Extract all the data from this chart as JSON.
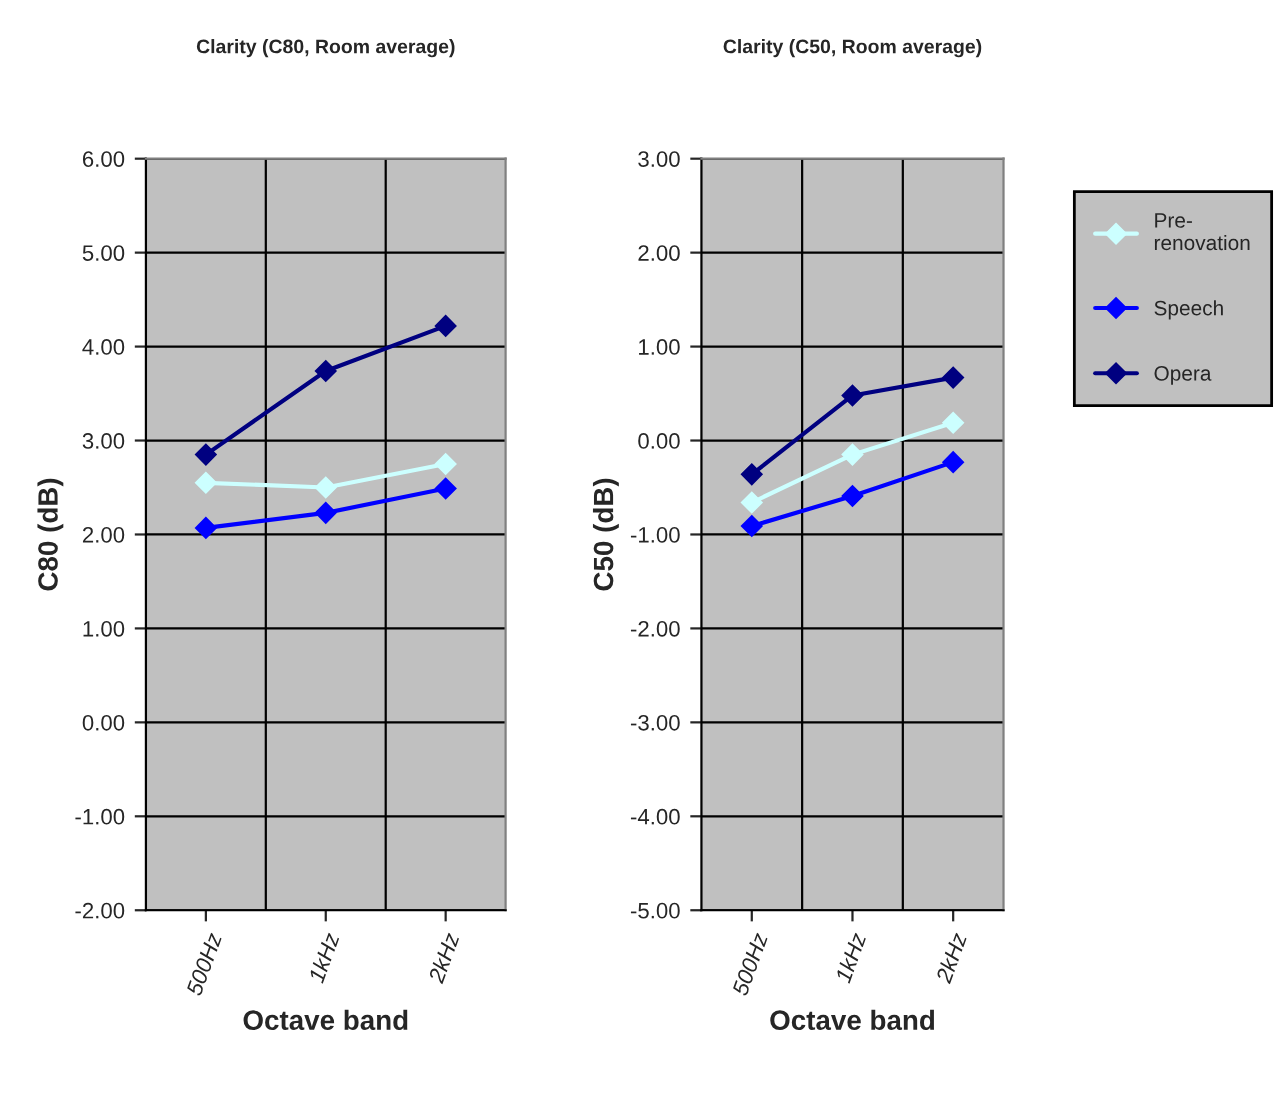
{
  "chart_data": [
    {
      "type": "line",
      "title": "Clarity (C80, Room average)",
      "xlabel": "Octave band",
      "ylabel": "C80 (dB)",
      "categories": [
        "500Hz",
        "1kHz",
        "2kHz"
      ],
      "series": [
        {
          "color": "#ccffff",
          "values": [
            2.55,
            2.5,
            2.75
          ]
        },
        {
          "color": "#0000ff",
          "values": [
            2.07,
            2.23,
            2.49
          ]
        },
        {
          "color": "#000080",
          "values": [
            2.85,
            3.74,
            4.22
          ]
        }
      ],
      "ylim": [
        -2,
        6
      ],
      "yticks": [
        {
          "value": -2,
          "label": "-2.00"
        },
        {
          "value": -1,
          "label": "-1.00"
        },
        {
          "value": 0,
          "label": "0.00"
        },
        {
          "value": 1,
          "label": "1.00"
        },
        {
          "value": 2,
          "label": "2.00"
        },
        {
          "value": 3,
          "label": "3.00"
        },
        {
          "value": 4,
          "label": "4.00"
        },
        {
          "value": 5,
          "label": "5.00"
        },
        {
          "value": 6,
          "label": "6.00"
        }
      ],
      "grid": true,
      "marker": "diamond",
      "line_style": "solid"
    },
    {
      "type": "line",
      "title": "Clarity (C50, Room average)",
      "xlabel": "Octave band",
      "ylabel": "C50 (dB)",
      "categories": [
        "500Hz",
        "1kHz",
        "2kHz"
      ],
      "series": [
        {
          "name": "Pre-renovation",
          "color": "#ccffff",
          "values": [
            -0.66,
            -0.15,
            0.19
          ]
        },
        {
          "name": "Speech",
          "color": "#0000ff",
          "values": [
            -0.91,
            -0.59,
            -0.23
          ]
        },
        {
          "name": "Opera",
          "color": "#000080",
          "values": [
            -0.36,
            0.48,
            0.67
          ]
        }
      ],
      "ylim": [
        -5,
        3
      ],
      "yticks": [
        {
          "value": -5,
          "label": "-5.00"
        },
        {
          "value": -4,
          "label": "-4.00"
        },
        {
          "value": -3,
          "label": "-3.00"
        },
        {
          "value": -2,
          "label": "-2.00"
        },
        {
          "value": -1,
          "label": "-1.00"
        },
        {
          "value": 0,
          "label": "0.00"
        },
        {
          "value": 1,
          "label": "1.00"
        },
        {
          "value": 2,
          "label": "2.00"
        },
        {
          "value": 3,
          "label": "3.00"
        }
      ],
      "grid": true,
      "marker": "diamond",
      "line_style": "solid",
      "legend": "right"
    }
  ]
}
